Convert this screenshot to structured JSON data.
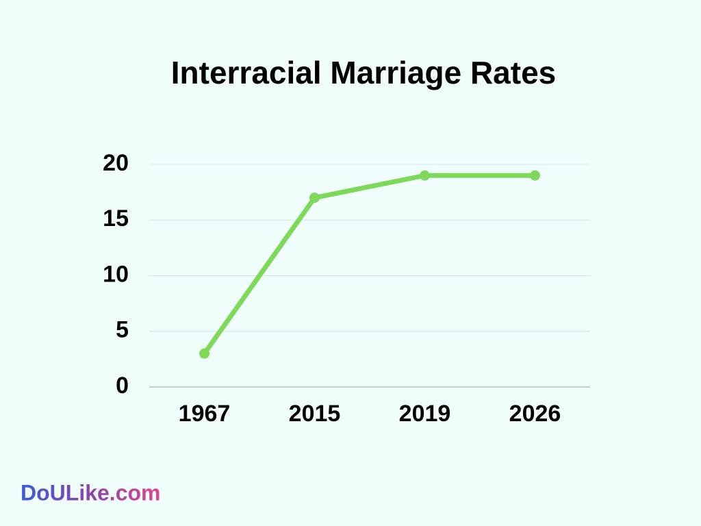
{
  "chart_data": {
    "type": "line",
    "title": "Interracial Marriage Rates",
    "categories": [
      "1967",
      "2015",
      "2019",
      "2026"
    ],
    "values": [
      3,
      17,
      19,
      19
    ],
    "color": "#7dd957",
    "ylim": [
      0,
      20
    ],
    "yticks": [
      0,
      5,
      10,
      15,
      20
    ],
    "grid": true,
    "watermark": "DoULike.com"
  }
}
